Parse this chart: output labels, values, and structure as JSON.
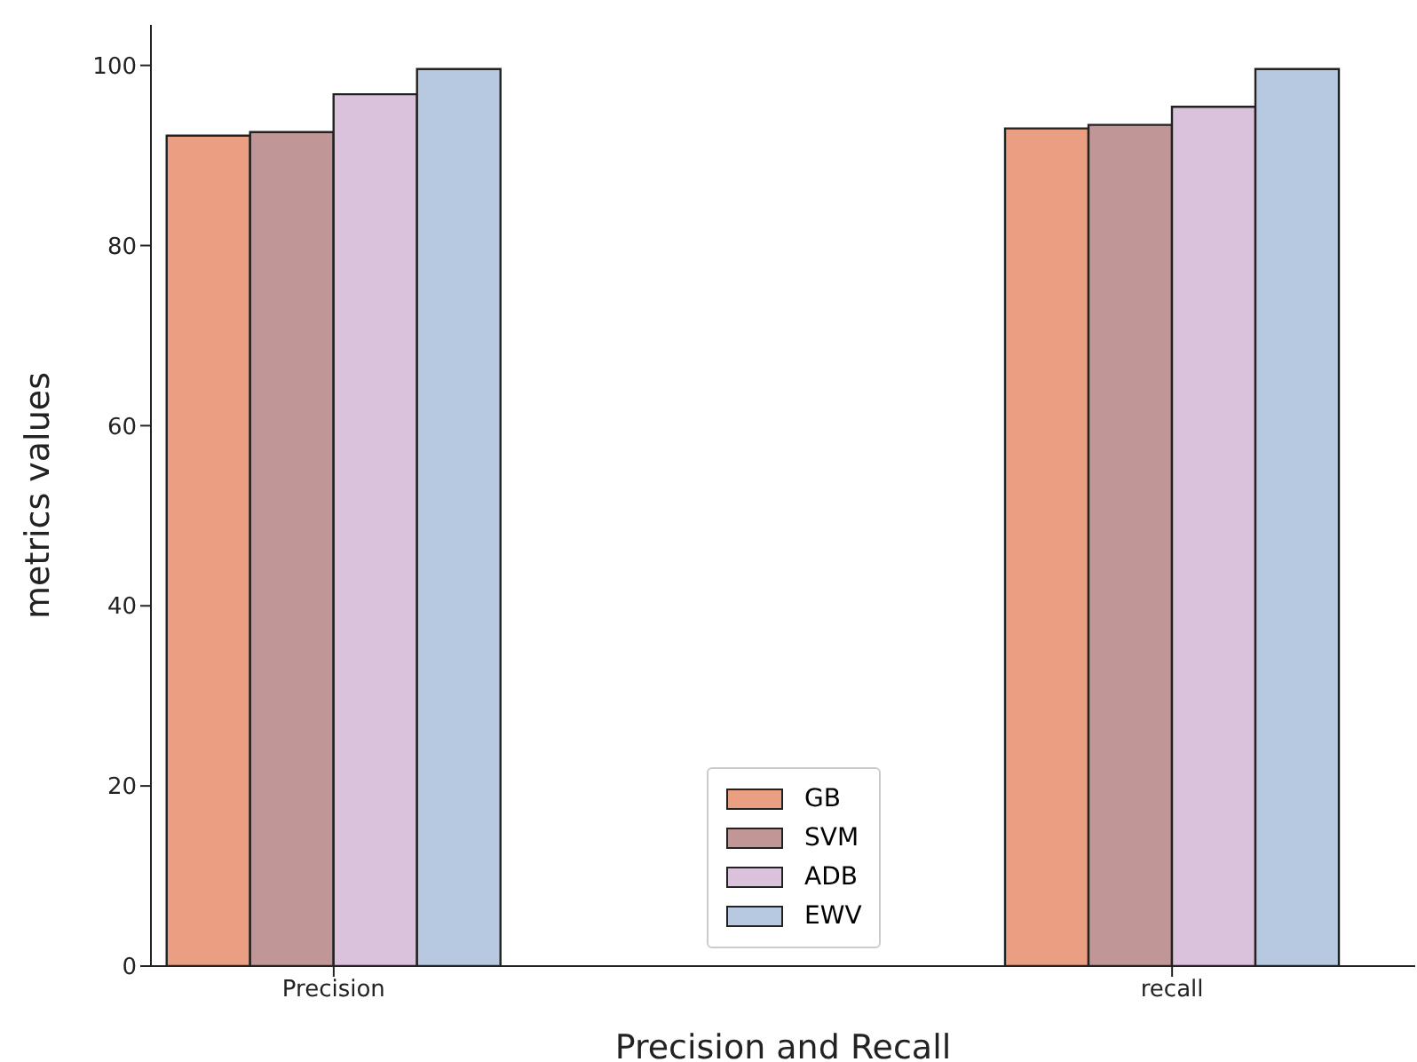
{
  "chart_data": {
    "type": "bar",
    "xlabel": "Precision and Recall",
    "ylabel": "metrics values",
    "categories": [
      "Precision",
      "recall"
    ],
    "series": [
      {
        "name": "GB",
        "color": "#ea9e82",
        "values": [
          92.2,
          93.0
        ]
      },
      {
        "name": "SVM",
        "color": "#c19696",
        "values": [
          92.6,
          93.4
        ]
      },
      {
        "name": "ADB",
        "color": "#dbc2dc",
        "values": [
          96.8,
          95.4
        ]
      },
      {
        "name": "EWV",
        "color": "#b6c9e1",
        "values": [
          99.6,
          99.6
        ]
      }
    ],
    "ylim": [
      0,
      104.5
    ],
    "yticks": [
      0,
      20,
      40,
      60,
      80,
      100
    ],
    "grid": false,
    "legend": "bottom"
  }
}
